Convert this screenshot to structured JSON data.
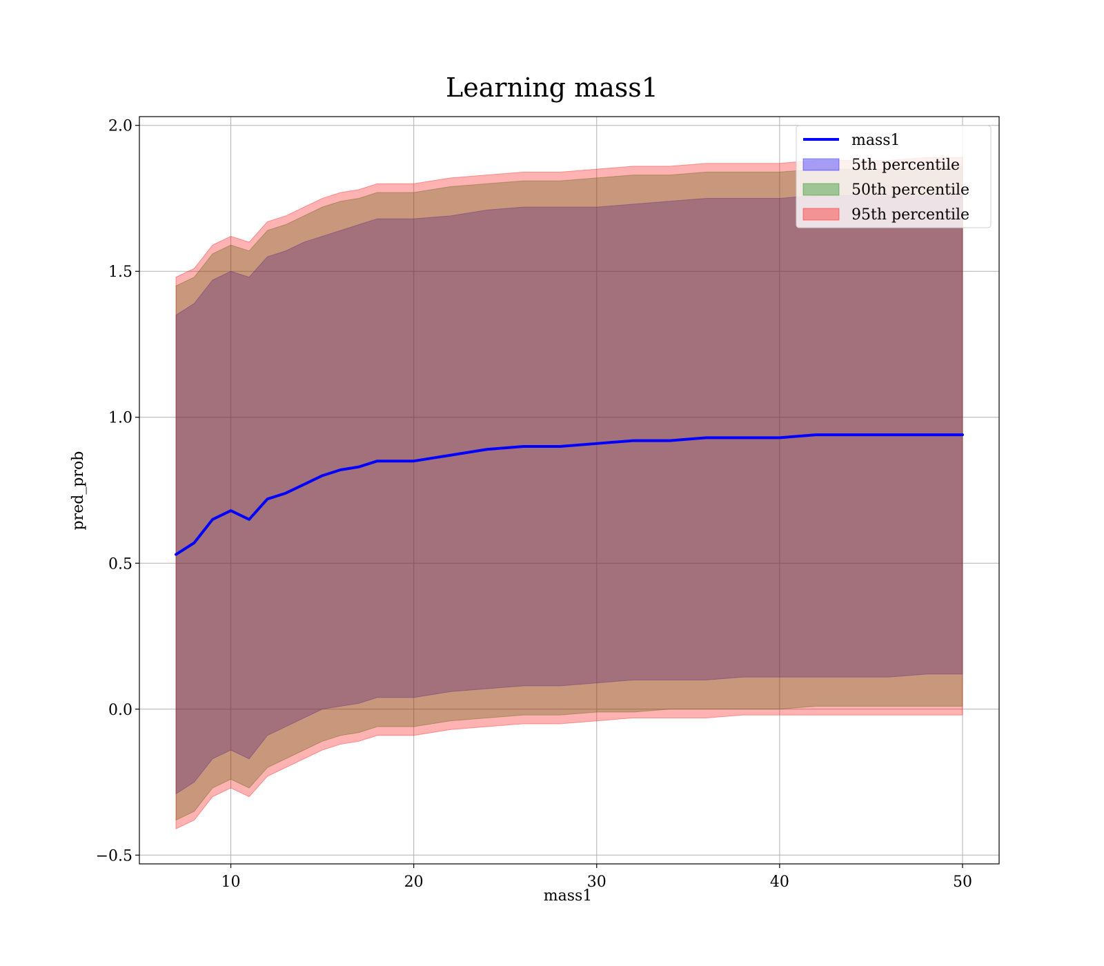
{
  "chart_data": {
    "type": "line",
    "title": "Learning mass1",
    "xlabel": "mass1",
    "ylabel": "pred_prob",
    "xlim": [
      5,
      52
    ],
    "ylim": [
      -0.53,
      2.03
    ],
    "xticks": [
      10,
      20,
      30,
      40,
      50
    ],
    "yticks": [
      -0.5,
      0.0,
      0.5,
      1.0,
      1.5,
      2.0
    ],
    "xtick_labels": [
      "10",
      "20",
      "30",
      "40",
      "50"
    ],
    "ytick_labels": [
      "−0.5",
      "0.0",
      "0.5",
      "1.0",
      "1.5",
      "2.0"
    ],
    "grid": true,
    "legend_position": "top-right",
    "x": [
      7,
      8,
      9,
      10,
      11,
      12,
      13,
      14,
      15,
      16,
      17,
      18,
      19,
      20,
      22,
      24,
      26,
      28,
      30,
      32,
      34,
      36,
      38,
      40,
      42,
      44,
      46,
      48,
      50
    ],
    "series": [
      {
        "name": "mass1",
        "kind": "line",
        "color": "#0000ff",
        "values": [
          0.53,
          0.57,
          0.65,
          0.68,
          0.65,
          0.72,
          0.74,
          0.77,
          0.8,
          0.82,
          0.83,
          0.85,
          0.85,
          0.85,
          0.87,
          0.89,
          0.9,
          0.9,
          0.91,
          0.92,
          0.92,
          0.93,
          0.93,
          0.93,
          0.94,
          0.94,
          0.94,
          0.94,
          0.94
        ]
      },
      {
        "name": "5th percentile",
        "kind": "band",
        "color": "#0000ff",
        "lower": [
          -0.29,
          -0.25,
          -0.17,
          -0.14,
          -0.17,
          -0.09,
          -0.06,
          -0.03,
          0.0,
          0.01,
          0.02,
          0.04,
          0.04,
          0.04,
          0.06,
          0.07,
          0.08,
          0.08,
          0.09,
          0.1,
          0.1,
          0.1,
          0.11,
          0.11,
          0.11,
          0.11,
          0.11,
          0.12,
          0.12
        ],
        "upper": [
          1.35,
          1.39,
          1.47,
          1.5,
          1.48,
          1.55,
          1.57,
          1.6,
          1.62,
          1.64,
          1.66,
          1.68,
          1.68,
          1.68,
          1.69,
          1.71,
          1.72,
          1.72,
          1.72,
          1.73,
          1.74,
          1.75,
          1.75,
          1.75,
          1.76,
          1.76,
          1.76,
          1.76,
          1.76
        ]
      },
      {
        "name": "50th percentile",
        "kind": "band",
        "color": "#008000",
        "lower": [
          -0.38,
          -0.35,
          -0.27,
          -0.24,
          -0.27,
          -0.2,
          -0.17,
          -0.14,
          -0.11,
          -0.09,
          -0.08,
          -0.06,
          -0.06,
          -0.06,
          -0.04,
          -0.03,
          -0.02,
          -0.02,
          -0.01,
          -0.01,
          0.0,
          0.0,
          0.0,
          0.0,
          0.01,
          0.01,
          0.01,
          0.01,
          0.01
        ],
        "upper": [
          1.45,
          1.48,
          1.56,
          1.59,
          1.57,
          1.64,
          1.66,
          1.69,
          1.72,
          1.74,
          1.75,
          1.77,
          1.77,
          1.77,
          1.79,
          1.8,
          1.81,
          1.81,
          1.82,
          1.83,
          1.83,
          1.84,
          1.84,
          1.84,
          1.85,
          1.85,
          1.85,
          1.86,
          1.86
        ]
      },
      {
        "name": "95th percentile",
        "kind": "band",
        "color": "#ff0000",
        "lower": [
          -0.41,
          -0.38,
          -0.3,
          -0.27,
          -0.3,
          -0.23,
          -0.2,
          -0.17,
          -0.14,
          -0.12,
          -0.11,
          -0.09,
          -0.09,
          -0.09,
          -0.07,
          -0.06,
          -0.05,
          -0.05,
          -0.04,
          -0.03,
          -0.03,
          -0.03,
          -0.02,
          -0.02,
          -0.02,
          -0.02,
          -0.02,
          -0.02,
          -0.02
        ],
        "upper": [
          1.48,
          1.51,
          1.59,
          1.62,
          1.6,
          1.67,
          1.69,
          1.72,
          1.75,
          1.77,
          1.78,
          1.8,
          1.8,
          1.8,
          1.82,
          1.83,
          1.84,
          1.84,
          1.85,
          1.86,
          1.86,
          1.87,
          1.87,
          1.87,
          1.88,
          1.88,
          1.88,
          1.89,
          1.89
        ]
      }
    ]
  }
}
